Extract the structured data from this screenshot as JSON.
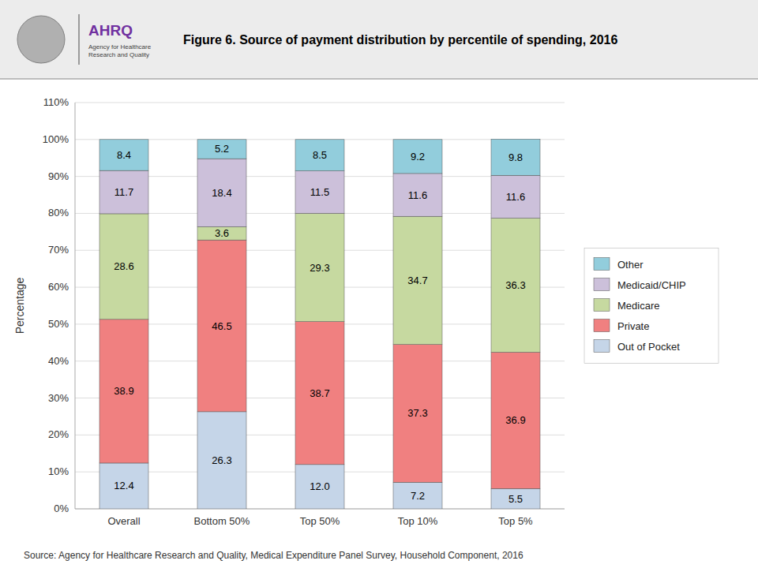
{
  "chart_data": {
    "type": "bar",
    "stacked": true,
    "title": "Figure 6. Source of payment distribution by percentile of spending, 2016",
    "categories": [
      "Overall",
      "Bottom 50%",
      "Top 50%",
      "Top 10%",
      "Top 5%"
    ],
    "series": [
      {
        "name": "Out of Pocket",
        "color": "#c5d5e8",
        "values": [
          12.4,
          26.3,
          12.0,
          7.2,
          5.5
        ],
        "value_labels": [
          "12.4",
          "26.3",
          "12.0",
          "7.2",
          "5.5"
        ]
      },
      {
        "name": "Private",
        "color": "#f08080",
        "values": [
          38.9,
          46.5,
          38.7,
          37.3,
          36.9
        ]
      },
      {
        "name": "Medicare",
        "color": "#c6d9a0",
        "values": [
          28.6,
          3.6,
          29.3,
          34.7,
          36.3
        ]
      },
      {
        "name": "Medicaid/CHIP",
        "color": "#ccc0da",
        "values": [
          11.7,
          18.4,
          11.5,
          11.6,
          11.6
        ]
      },
      {
        "name": "Other",
        "color": "#92cddc",
        "values": [
          8.4,
          5.2,
          8.5,
          9.2,
          9.8
        ]
      }
    ],
    "ylabel": "Percentage",
    "ylim": [
      0,
      110
    ],
    "yticks": [
      {
        "value": 0,
        "label": "0%"
      },
      {
        "value": 10,
        "label": "10%"
      },
      {
        "value": 20,
        "label": "20%"
      },
      {
        "value": 30,
        "label": "30%"
      },
      {
        "value": 40,
        "label": "40%"
      },
      {
        "value": 50,
        "label": "50%"
      },
      {
        "value": 60,
        "label": "60%"
      },
      {
        "value": 70,
        "label": "70%"
      },
      {
        "value": 80,
        "label": "80%"
      },
      {
        "value": 90,
        "label": "90%"
      },
      {
        "value": 100,
        "label": "100%"
      },
      {
        "value": 110,
        "label": "110%"
      }
    ],
    "grid": true,
    "legend": "right",
    "data_labels": true,
    "annotations": [
      "AHRQ",
      "Agency for Healthcare\nResearch and Quality",
      "Source: Agency for Healthcare Research and Quality, Medical Expenditure Panel Survey, Household Component, 2016"
    ]
  }
}
